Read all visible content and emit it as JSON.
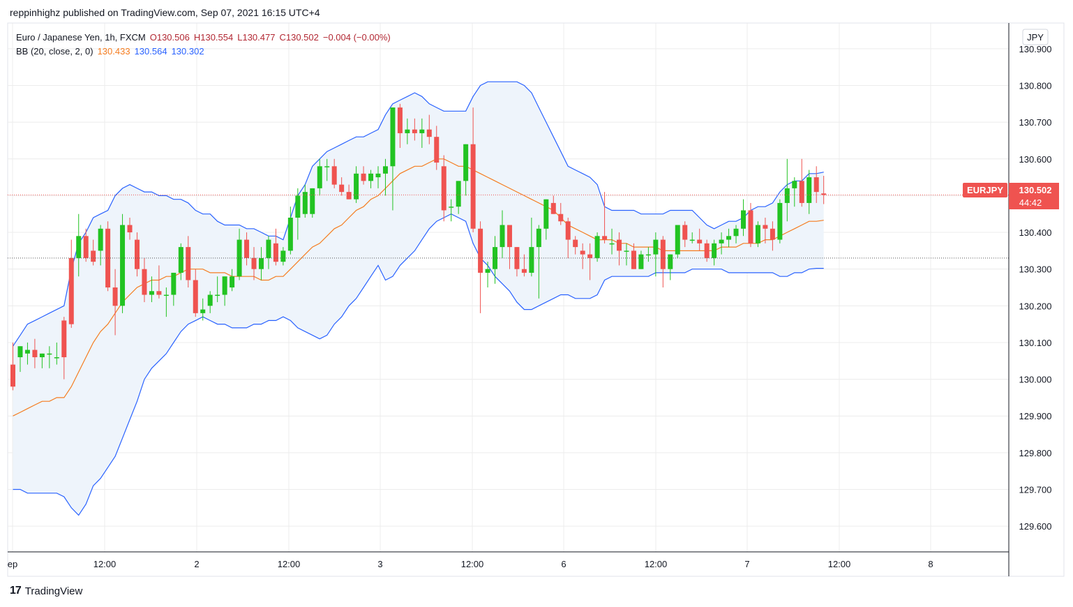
{
  "header": {
    "published_line": "reppinhighz published on TradingView.com, Sep 07, 2021 16:15 UTC+4"
  },
  "legend": {
    "symbol_desc": "Euro / Japanese Yen, 1h, FXCM",
    "open": "O130.506",
    "high": "H130.554",
    "low": "L130.477",
    "close": "C130.502",
    "change": "−0.004 (−0.00%)",
    "bb_label": "BB (20, close, 2, 0)",
    "bb_basis": "130.433",
    "bb_upper": "130.564",
    "bb_lower": "130.302"
  },
  "currency_badge": "JPY",
  "last_price_tag": {
    "symbol": "EURJPY",
    "price": "130.502",
    "countdown": "44:42"
  },
  "footer": {
    "brand": "TradingView"
  },
  "colors": {
    "up": "#22c322",
    "down": "#ef5350",
    "basis": "#f57c1f",
    "band": "#2962ff",
    "band_fill": "#eef4fb",
    "grid": "#ececec",
    "price_line": "#ef5350"
  },
  "chart_data": {
    "type": "candlestick",
    "symbol": "EURJPY",
    "timeframe": "1h",
    "ylim": [
      129.53,
      130.97
    ],
    "y_ticks": [
      "129.600",
      "129.700",
      "129.800",
      "129.900",
      "130.000",
      "130.100",
      "130.200",
      "130.300",
      "130.400",
      "130.500",
      "130.600",
      "130.700",
      "130.800",
      "130.900"
    ],
    "x_ticks": [
      "ep",
      "12:00",
      "2",
      "12:00",
      "3",
      "12:00",
      "6",
      "12:00",
      "7",
      "12:00",
      "8"
    ],
    "candles": [
      [
        130.04,
        130.1,
        129.97,
        129.98
      ],
      [
        130.06,
        130.09,
        130.02,
        130.09
      ],
      [
        130.07,
        130.1,
        130.04,
        130.08
      ],
      [
        130.08,
        130.11,
        130.03,
        130.06
      ],
      [
        130.06,
        130.07,
        130.03,
        130.07
      ],
      [
        130.07,
        130.09,
        130.03,
        130.07
      ],
      [
        130.06,
        130.1,
        130.04,
        130.06
      ],
      [
        130.16,
        130.17,
        130.0,
        130.06
      ],
      [
        130.33,
        130.38,
        130.14,
        130.15
      ],
      [
        130.33,
        130.45,
        130.28,
        130.39
      ],
      [
        130.39,
        130.41,
        130.32,
        130.33
      ],
      [
        130.35,
        130.38,
        130.31,
        130.32
      ],
      [
        130.35,
        130.42,
        130.31,
        130.41
      ],
      [
        130.41,
        130.43,
        130.24,
        130.25
      ],
      [
        130.25,
        130.3,
        130.12,
        130.2
      ],
      [
        130.2,
        130.45,
        130.18,
        130.42
      ],
      [
        130.42,
        130.44,
        130.38,
        130.4
      ],
      [
        130.38,
        130.4,
        130.28,
        130.3
      ],
      [
        130.3,
        130.33,
        130.21,
        130.23
      ],
      [
        130.23,
        130.28,
        130.21,
        130.24
      ],
      [
        130.24,
        130.31,
        130.22,
        130.23
      ],
      [
        130.23,
        130.25,
        130.17,
        130.23
      ],
      [
        130.23,
        130.29,
        130.2,
        130.29
      ],
      [
        130.29,
        130.37,
        130.27,
        130.36
      ],
      [
        130.36,
        130.39,
        130.25,
        130.27
      ],
      [
        130.27,
        130.3,
        130.17,
        130.18
      ],
      [
        130.18,
        130.22,
        130.16,
        130.19
      ],
      [
        130.2,
        130.24,
        130.18,
        130.23
      ],
      [
        130.23,
        130.28,
        130.21,
        130.23
      ],
      [
        130.23,
        130.28,
        130.2,
        130.28
      ],
      [
        130.25,
        130.3,
        130.24,
        130.28
      ],
      [
        130.28,
        130.41,
        130.27,
        130.38
      ],
      [
        130.38,
        130.4,
        130.31,
        130.33
      ],
      [
        130.33,
        130.36,
        130.27,
        130.3
      ],
      [
        130.3,
        130.36,
        130.27,
        130.33
      ],
      [
        130.33,
        130.39,
        130.3,
        130.38
      ],
      [
        130.37,
        130.41,
        130.31,
        130.32
      ],
      [
        130.32,
        130.36,
        130.31,
        130.35
      ],
      [
        130.35,
        130.47,
        130.34,
        130.44
      ],
      [
        130.44,
        130.52,
        130.38,
        130.5
      ],
      [
        130.45,
        130.53,
        130.44,
        130.51
      ],
      [
        130.45,
        130.52,
        130.44,
        130.52
      ],
      [
        130.52,
        130.6,
        130.5,
        130.58
      ],
      [
        130.58,
        130.6,
        130.54,
        130.58
      ],
      [
        130.58,
        130.6,
        130.52,
        130.53
      ],
      [
        130.53,
        130.55,
        130.5,
        130.51
      ],
      [
        130.51,
        130.53,
        130.49,
        130.49
      ],
      [
        130.49,
        130.58,
        130.48,
        130.56
      ],
      [
        130.56,
        130.58,
        130.53,
        130.54
      ],
      [
        130.54,
        130.57,
        130.52,
        130.56
      ],
      [
        130.55,
        130.58,
        130.52,
        130.56
      ],
      [
        130.56,
        130.6,
        130.5,
        130.58
      ],
      [
        130.58,
        130.74,
        130.46,
        130.74
      ],
      [
        130.74,
        130.75,
        130.63,
        130.67
      ],
      [
        130.67,
        130.71,
        130.64,
        130.68
      ],
      [
        130.68,
        130.71,
        130.65,
        130.67
      ],
      [
        130.67,
        130.71,
        130.63,
        130.68
      ],
      [
        130.68,
        130.72,
        130.64,
        130.66
      ],
      [
        130.66,
        130.69,
        130.57,
        130.59
      ],
      [
        130.58,
        130.61,
        130.43,
        130.46
      ],
      [
        130.47,
        130.49,
        130.43,
        130.47
      ],
      [
        130.47,
        130.54,
        130.45,
        130.54
      ],
      [
        130.54,
        130.64,
        130.5,
        130.64
      ],
      [
        130.64,
        130.74,
        130.4,
        130.41
      ],
      [
        130.41,
        130.43,
        130.18,
        130.29
      ],
      [
        130.29,
        130.32,
        130.25,
        130.3
      ],
      [
        130.3,
        130.39,
        130.26,
        130.36
      ],
      [
        130.36,
        130.46,
        130.33,
        130.42
      ],
      [
        130.42,
        130.42,
        130.3,
        130.36
      ],
      [
        130.36,
        130.36,
        130.28,
        130.3
      ],
      [
        130.3,
        130.34,
        130.28,
        130.29
      ],
      [
        130.29,
        130.44,
        130.28,
        130.36
      ],
      [
        130.36,
        130.42,
        130.22,
        130.41
      ],
      [
        130.41,
        130.49,
        130.38,
        130.49
      ],
      [
        130.48,
        130.5,
        130.45,
        130.45
      ],
      [
        130.45,
        130.48,
        130.42,
        130.43
      ],
      [
        130.43,
        130.44,
        130.33,
        130.38
      ],
      [
        130.38,
        130.39,
        130.34,
        130.36
      ],
      [
        130.35,
        130.37,
        130.3,
        130.34
      ],
      [
        130.34,
        130.37,
        130.27,
        130.33
      ],
      [
        130.33,
        130.4,
        130.32,
        130.39
      ],
      [
        130.39,
        130.51,
        130.37,
        130.38
      ],
      [
        130.37,
        130.41,
        130.34,
        130.37
      ],
      [
        130.38,
        130.4,
        130.31,
        130.35
      ],
      [
        130.35,
        130.37,
        130.31,
        130.35
      ],
      [
        130.35,
        130.37,
        130.3,
        130.3
      ],
      [
        130.3,
        130.35,
        130.3,
        130.34
      ],
      [
        130.34,
        130.36,
        130.32,
        130.34
      ],
      [
        130.34,
        130.4,
        130.28,
        130.38
      ],
      [
        130.38,
        130.39,
        130.25,
        130.3
      ],
      [
        130.3,
        130.34,
        130.27,
        130.34
      ],
      [
        130.34,
        130.42,
        130.33,
        130.42
      ],
      [
        130.42,
        130.43,
        130.36,
        130.38
      ],
      [
        130.38,
        130.4,
        130.37,
        130.38
      ],
      [
        130.38,
        130.41,
        130.35,
        130.37
      ],
      [
        130.37,
        130.38,
        130.32,
        130.33
      ],
      [
        130.33,
        130.38,
        130.31,
        130.37
      ],
      [
        130.37,
        130.4,
        130.34,
        130.38
      ],
      [
        130.38,
        130.41,
        130.36,
        130.39
      ],
      [
        130.39,
        130.42,
        130.37,
        130.41
      ],
      [
        130.41,
        130.49,
        130.39,
        130.46
      ],
      [
        130.46,
        130.48,
        130.36,
        130.37
      ],
      [
        130.37,
        130.43,
        130.36,
        130.42
      ],
      [
        130.42,
        130.44,
        130.37,
        130.41
      ],
      [
        130.41,
        130.43,
        130.35,
        130.38
      ],
      [
        130.38,
        130.49,
        130.37,
        130.48
      ],
      [
        130.48,
        130.6,
        130.43,
        130.52
      ],
      [
        130.52,
        130.55,
        130.47,
        130.54
      ],
      [
        130.54,
        130.6,
        130.47,
        130.48
      ],
      [
        130.48,
        130.57,
        130.45,
        130.55
      ],
      [
        130.55,
        130.58,
        130.48,
        130.51
      ],
      [
        130.506,
        130.554,
        130.477,
        130.502
      ]
    ],
    "bb_basis": [
      129.9,
      129.91,
      129.92,
      129.93,
      129.94,
      129.94,
      129.95,
      129.95,
      129.98,
      130.02,
      130.06,
      130.1,
      130.13,
      130.15,
      130.18,
      130.21,
      130.23,
      130.25,
      130.26,
      130.27,
      130.27,
      130.28,
      130.28,
      130.29,
      130.3,
      130.3,
      130.3,
      130.29,
      130.29,
      130.29,
      130.28,
      130.28,
      130.28,
      130.28,
      130.27,
      130.27,
      130.28,
      130.28,
      130.3,
      130.32,
      130.34,
      130.36,
      130.37,
      130.39,
      130.41,
      130.42,
      130.44,
      130.46,
      130.47,
      130.49,
      130.5,
      130.52,
      130.54,
      130.56,
      130.57,
      130.58,
      130.58,
      130.59,
      130.6,
      130.6,
      130.59,
      130.58,
      130.58,
      130.57,
      130.56,
      130.55,
      130.54,
      130.53,
      130.52,
      130.51,
      130.5,
      130.49,
      130.48,
      130.47,
      130.46,
      130.44,
      130.42,
      130.41,
      130.4,
      130.39,
      130.38,
      130.38,
      130.38,
      130.37,
      130.37,
      130.36,
      130.36,
      130.36,
      130.36,
      130.35,
      130.35,
      130.35,
      130.35,
      130.35,
      130.35,
      130.35,
      130.35,
      130.36,
      130.36,
      130.36,
      130.37,
      130.37,
      130.37,
      130.38,
      130.38,
      130.39,
      130.4,
      130.41,
      130.42,
      130.43,
      130.43,
      130.433
    ],
    "bb_upper": [
      130.09,
      130.12,
      130.15,
      130.16,
      130.17,
      130.18,
      130.19,
      130.2,
      130.3,
      130.37,
      130.4,
      130.44,
      130.45,
      130.46,
      130.5,
      130.52,
      130.53,
      130.52,
      130.51,
      130.51,
      130.5,
      130.5,
      130.49,
      130.49,
      130.48,
      130.46,
      130.45,
      130.45,
      130.43,
      130.42,
      130.42,
      130.42,
      130.41,
      130.41,
      130.4,
      130.39,
      130.39,
      130.38,
      130.44,
      130.5,
      130.53,
      130.58,
      130.6,
      130.62,
      130.63,
      130.64,
      130.65,
      130.66,
      130.66,
      130.67,
      130.68,
      130.72,
      130.75,
      130.76,
      130.77,
      130.78,
      130.77,
      130.75,
      130.74,
      130.73,
      130.73,
      130.73,
      130.73,
      130.77,
      130.8,
      130.81,
      130.81,
      130.81,
      130.81,
      130.81,
      130.8,
      130.78,
      130.74,
      130.7,
      130.66,
      130.62,
      130.58,
      130.57,
      130.56,
      130.55,
      130.53,
      130.47,
      130.46,
      130.46,
      130.46,
      130.46,
      130.45,
      130.45,
      130.45,
      130.45,
      130.46,
      130.46,
      130.46,
      130.46,
      130.44,
      130.42,
      130.41,
      130.42,
      130.43,
      130.43,
      130.44,
      130.46,
      130.47,
      130.47,
      130.48,
      130.51,
      130.53,
      130.54,
      130.54,
      130.56,
      130.56,
      130.564
    ],
    "bb_lower": [
      129.7,
      129.7,
      129.69,
      129.69,
      129.69,
      129.69,
      129.69,
      129.68,
      129.65,
      129.63,
      129.66,
      129.71,
      129.73,
      129.76,
      129.79,
      129.84,
      129.89,
      129.94,
      130.0,
      130.03,
      130.05,
      130.07,
      130.1,
      130.13,
      130.15,
      130.16,
      130.17,
      130.16,
      130.15,
      130.15,
      130.14,
      130.14,
      130.14,
      130.15,
      130.15,
      130.16,
      130.16,
      130.17,
      130.16,
      130.14,
      130.13,
      130.12,
      130.11,
      130.12,
      130.15,
      130.17,
      130.2,
      130.22,
      130.25,
      130.28,
      130.31,
      130.27,
      130.28,
      130.31,
      130.33,
      130.35,
      130.38,
      130.41,
      130.43,
      130.44,
      130.45,
      130.44,
      130.43,
      130.37,
      130.33,
      130.31,
      130.28,
      130.26,
      130.24,
      130.21,
      130.19,
      130.19,
      130.2,
      130.21,
      130.22,
      130.23,
      130.23,
      130.22,
      130.22,
      130.22,
      130.23,
      130.27,
      130.28,
      130.28,
      130.28,
      130.28,
      130.28,
      130.28,
      130.29,
      130.29,
      130.29,
      130.29,
      130.29,
      130.3,
      130.3,
      130.3,
      130.3,
      130.3,
      130.29,
      130.29,
      130.29,
      130.29,
      130.29,
      130.29,
      130.29,
      130.28,
      130.28,
      130.29,
      130.29,
      130.3,
      130.302,
      130.302
    ],
    "last_price": 130.502,
    "secondary_line": 130.33
  }
}
